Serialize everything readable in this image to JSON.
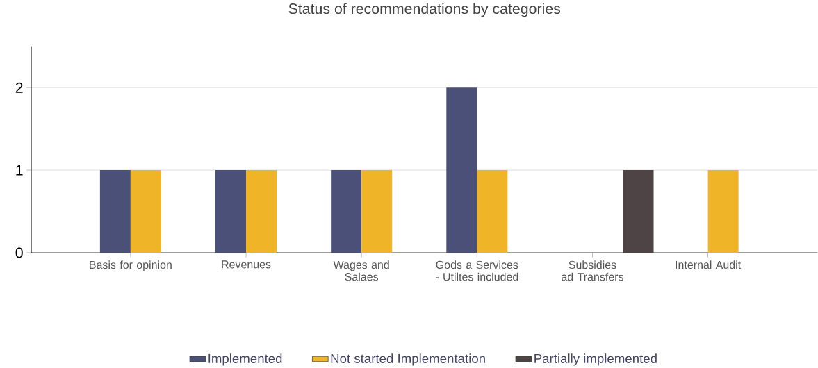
{
  "chart_data": {
    "type": "bar",
    "title": "Status of recommendations by categories",
    "categories": [
      "Basis for opinion",
      "Revenues",
      "Wages and Salaes",
      "Gods a Services - Utiltes included",
      "Subsidies ad Transfers",
      "Internal Audit"
    ],
    "series": [
      {
        "name": "Implemented",
        "color": "#4b5079",
        "values": [
          1,
          1,
          1,
          2,
          null,
          null
        ]
      },
      {
        "name": "Not started Implementation",
        "color": "#f0b429",
        "values": [
          1,
          1,
          1,
          1,
          null,
          1
        ]
      },
      {
        "name": "Partially implemented",
        "color": "#4e4446",
        "values": [
          null,
          null,
          null,
          null,
          1,
          null
        ]
      }
    ],
    "ylim": [
      0,
      2.5
    ],
    "yticks": [
      0,
      1,
      2
    ],
    "grid": "y",
    "legend": "bottom"
  }
}
